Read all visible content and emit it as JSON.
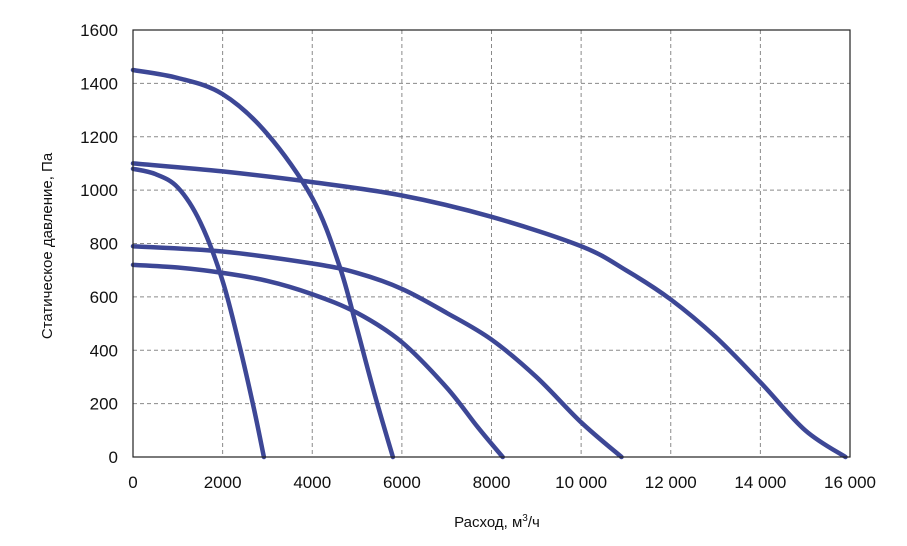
{
  "chart_data": {
    "type": "line",
    "title": "",
    "xlabel": "Расход, м",
    "xlabel_sup": "3",
    "xlabel_suffix": "/ч",
    "ylabel": "Статическое давление, Па",
    "xlim": [
      0,
      16000
    ],
    "ylim": [
      0,
      1600
    ],
    "xticks": [
      0,
      2000,
      4000,
      6000,
      8000,
      10000,
      12000,
      14000,
      16000
    ],
    "xtick_labels": [
      "0",
      "2000",
      "4000",
      "6000",
      "8000",
      "10 000",
      "12 000",
      "14 000",
      "16 000"
    ],
    "yticks": [
      0,
      200,
      400,
      600,
      800,
      1000,
      1200,
      1400,
      1600
    ],
    "ytick_labels": [
      "0",
      "200",
      "400",
      "600",
      "800",
      "1000",
      "1200",
      "1400",
      "1600"
    ],
    "grid": true,
    "grid_style": "dashed",
    "line_color": "#3d4796",
    "series": [
      {
        "points": [
          [
            0,
            1080
          ],
          [
            500,
            1060
          ],
          [
            1000,
            1010
          ],
          [
            1500,
            880
          ],
          [
            2000,
            660
          ],
          [
            2400,
            400
          ],
          [
            2700,
            180
          ],
          [
            2920,
            0
          ]
        ]
      },
      {
        "points": [
          [
            0,
            1450
          ],
          [
            1000,
            1420
          ],
          [
            2000,
            1360
          ],
          [
            3000,
            1210
          ],
          [
            4000,
            970
          ],
          [
            4600,
            720
          ],
          [
            5000,
            480
          ],
          [
            5400,
            230
          ],
          [
            5800,
            0
          ]
        ]
      },
      {
        "points": [
          [
            0,
            720
          ],
          [
            1000,
            710
          ],
          [
            2000,
            690
          ],
          [
            3000,
            660
          ],
          [
            4000,
            610
          ],
          [
            5000,
            540
          ],
          [
            6000,
            430
          ],
          [
            7000,
            260
          ],
          [
            7700,
            110
          ],
          [
            8250,
            0
          ]
        ]
      },
      {
        "points": [
          [
            0,
            790
          ],
          [
            2000,
            770
          ],
          [
            4000,
            725
          ],
          [
            5000,
            690
          ],
          [
            6000,
            630
          ],
          [
            7000,
            540
          ],
          [
            8000,
            440
          ],
          [
            9000,
            300
          ],
          [
            10000,
            130
          ],
          [
            10900,
            0
          ]
        ]
      },
      {
        "points": [
          [
            0,
            1100
          ],
          [
            2000,
            1070
          ],
          [
            4000,
            1030
          ],
          [
            6000,
            980
          ],
          [
            8000,
            900
          ],
          [
            10000,
            790
          ],
          [
            11000,
            700
          ],
          [
            12000,
            590
          ],
          [
            13000,
            450
          ],
          [
            14000,
            280
          ],
          [
            15000,
            100
          ],
          [
            15900,
            0
          ]
        ]
      }
    ]
  }
}
